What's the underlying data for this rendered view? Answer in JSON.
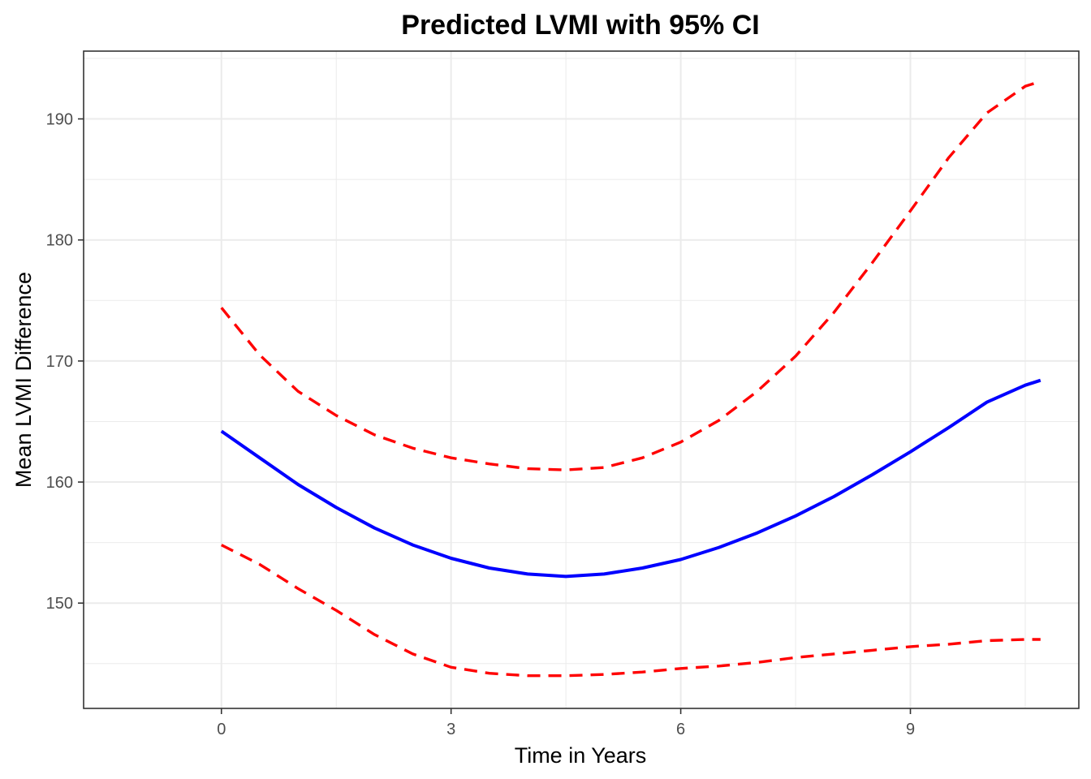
{
  "chart_data": {
    "type": "line",
    "title": "Predicted LVMI with 95% CI",
    "xlabel": "Time in Years",
    "ylabel": "Mean LVMI Difference",
    "xlim": [
      -1.8,
      11.2
    ],
    "ylim": [
      141.3,
      195.6
    ],
    "x_ticks": [
      0,
      3,
      6,
      9
    ],
    "x_tick_labels": [
      "0",
      "3",
      "6",
      "9"
    ],
    "x_minor_ticks": [
      1.5,
      4.5,
      7.5,
      10.5
    ],
    "y_ticks": [
      150,
      160,
      170,
      180,
      190
    ],
    "y_tick_labels": [
      "150",
      "160",
      "170",
      "180",
      "190"
    ],
    "y_minor_ticks": [
      145,
      155,
      165,
      175,
      185,
      195
    ],
    "grid": true,
    "legend": "none",
    "colors": {
      "fit": "#0000ff",
      "ci": "#ff0000",
      "grid": "#ebebeb",
      "panel_border": "#333333"
    },
    "x": [
      0,
      0.5,
      1,
      1.5,
      2,
      2.5,
      3,
      3.5,
      4,
      4.5,
      5,
      5.5,
      6,
      6.5,
      7,
      7.5,
      8,
      8.5,
      9,
      9.5,
      10,
      10.5,
      10.7
    ],
    "series": [
      {
        "style": "solid",
        "values": [
          164.2,
          162.0,
          159.8,
          157.9,
          156.2,
          154.8,
          153.7,
          152.9,
          152.4,
          152.2,
          152.4,
          152.9,
          153.6,
          154.6,
          155.8,
          157.2,
          158.8,
          160.6,
          162.5,
          164.5,
          166.6,
          168.0,
          168.4
        ]
      },
      {
        "style": "dashed",
        "values": [
          174.4,
          170.5,
          167.5,
          165.5,
          163.9,
          162.8,
          162.0,
          161.5,
          161.1,
          161.0,
          161.2,
          162.0,
          163.3,
          165.1,
          167.5,
          170.4,
          174.0,
          178.1,
          182.4,
          186.8,
          190.5,
          192.7,
          193.1
        ]
      },
      {
        "style": "dashed",
        "values": [
          154.8,
          153.2,
          151.2,
          149.4,
          147.4,
          145.8,
          144.7,
          144.2,
          144.0,
          144.0,
          144.1,
          144.3,
          144.6,
          144.8,
          145.1,
          145.5,
          145.8,
          146.1,
          146.4,
          146.6,
          146.9,
          147.0,
          147.0
        ]
      }
    ]
  }
}
